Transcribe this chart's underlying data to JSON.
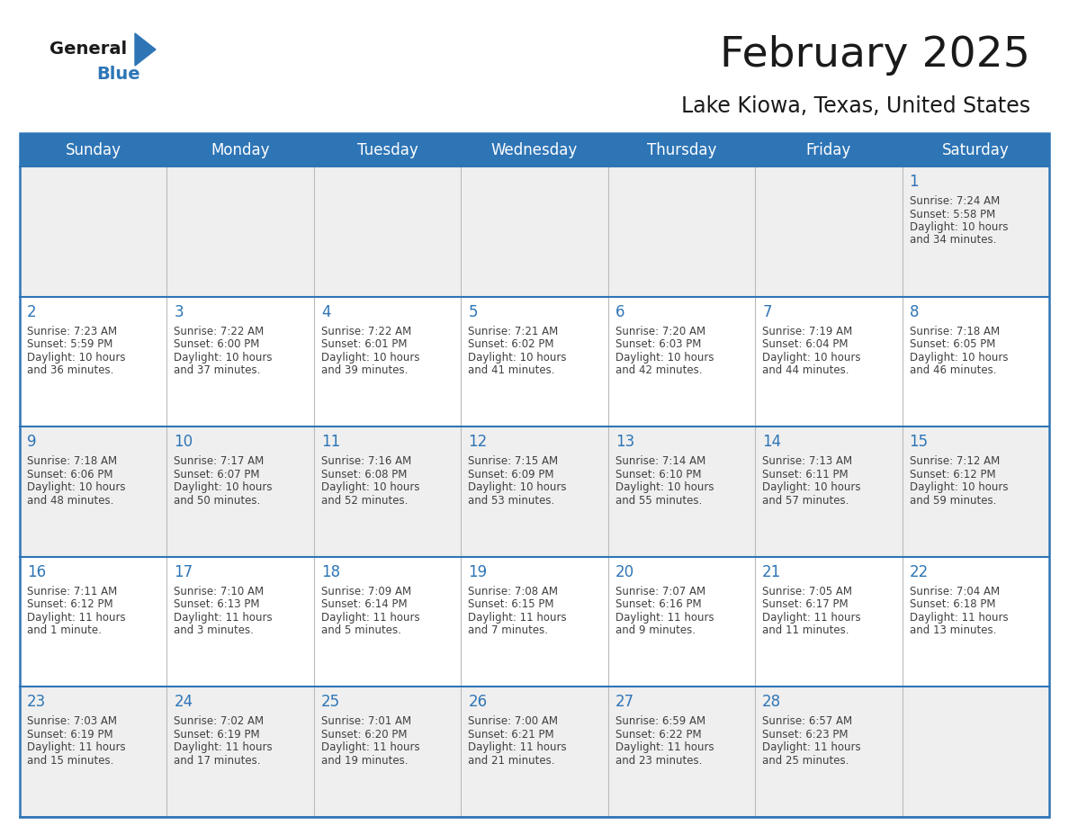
{
  "title": "February 2025",
  "subtitle": "Lake Kiowa, Texas, United States",
  "days_of_week": [
    "Sunday",
    "Monday",
    "Tuesday",
    "Wednesday",
    "Thursday",
    "Friday",
    "Saturday"
  ],
  "header_bg": "#2E75B6",
  "header_text": "#FFFFFF",
  "cell_bg_odd": "#EFEFEF",
  "cell_bg_even": "#FFFFFF",
  "day_number_color": "#2E75B6",
  "text_color": "#404040",
  "line_color": "#2E75B6",
  "title_color": "#1a1a1a",
  "logo_general_color": "#1a1a1a",
  "logo_blue_color": "#2E75B6",
  "logo_triangle_color": "#2E75B6",
  "weeks": [
    [
      null,
      null,
      null,
      null,
      null,
      null,
      1
    ],
    [
      2,
      3,
      4,
      5,
      6,
      7,
      8
    ],
    [
      9,
      10,
      11,
      12,
      13,
      14,
      15
    ],
    [
      16,
      17,
      18,
      19,
      20,
      21,
      22
    ],
    [
      23,
      24,
      25,
      26,
      27,
      28,
      null
    ]
  ],
  "cell_data": {
    "1": {
      "sunrise": "7:24 AM",
      "sunset": "5:58 PM",
      "daylight_h": "10 hours",
      "daylight_m": "34 minutes"
    },
    "2": {
      "sunrise": "7:23 AM",
      "sunset": "5:59 PM",
      "daylight_h": "10 hours",
      "daylight_m": "36 minutes"
    },
    "3": {
      "sunrise": "7:22 AM",
      "sunset": "6:00 PM",
      "daylight_h": "10 hours",
      "daylight_m": "37 minutes"
    },
    "4": {
      "sunrise": "7:22 AM",
      "sunset": "6:01 PM",
      "daylight_h": "10 hours",
      "daylight_m": "39 minutes"
    },
    "5": {
      "sunrise": "7:21 AM",
      "sunset": "6:02 PM",
      "daylight_h": "10 hours",
      "daylight_m": "41 minutes"
    },
    "6": {
      "sunrise": "7:20 AM",
      "sunset": "6:03 PM",
      "daylight_h": "10 hours",
      "daylight_m": "42 minutes"
    },
    "7": {
      "sunrise": "7:19 AM",
      "sunset": "6:04 PM",
      "daylight_h": "10 hours",
      "daylight_m": "44 minutes"
    },
    "8": {
      "sunrise": "7:18 AM",
      "sunset": "6:05 PM",
      "daylight_h": "10 hours",
      "daylight_m": "46 minutes"
    },
    "9": {
      "sunrise": "7:18 AM",
      "sunset": "6:06 PM",
      "daylight_h": "10 hours",
      "daylight_m": "48 minutes"
    },
    "10": {
      "sunrise": "7:17 AM",
      "sunset": "6:07 PM",
      "daylight_h": "10 hours",
      "daylight_m": "50 minutes"
    },
    "11": {
      "sunrise": "7:16 AM",
      "sunset": "6:08 PM",
      "daylight_h": "10 hours",
      "daylight_m": "52 minutes"
    },
    "12": {
      "sunrise": "7:15 AM",
      "sunset": "6:09 PM",
      "daylight_h": "10 hours",
      "daylight_m": "53 minutes"
    },
    "13": {
      "sunrise": "7:14 AM",
      "sunset": "6:10 PM",
      "daylight_h": "10 hours",
      "daylight_m": "55 minutes"
    },
    "14": {
      "sunrise": "7:13 AM",
      "sunset": "6:11 PM",
      "daylight_h": "10 hours",
      "daylight_m": "57 minutes"
    },
    "15": {
      "sunrise": "7:12 AM",
      "sunset": "6:12 PM",
      "daylight_h": "10 hours",
      "daylight_m": "59 minutes"
    },
    "16": {
      "sunrise": "7:11 AM",
      "sunset": "6:12 PM",
      "daylight_h": "11 hours",
      "daylight_m": "1 minute"
    },
    "17": {
      "sunrise": "7:10 AM",
      "sunset": "6:13 PM",
      "daylight_h": "11 hours",
      "daylight_m": "3 minutes"
    },
    "18": {
      "sunrise": "7:09 AM",
      "sunset": "6:14 PM",
      "daylight_h": "11 hours",
      "daylight_m": "5 minutes"
    },
    "19": {
      "sunrise": "7:08 AM",
      "sunset": "6:15 PM",
      "daylight_h": "11 hours",
      "daylight_m": "7 minutes"
    },
    "20": {
      "sunrise": "7:07 AM",
      "sunset": "6:16 PM",
      "daylight_h": "11 hours",
      "daylight_m": "9 minutes"
    },
    "21": {
      "sunrise": "7:05 AM",
      "sunset": "6:17 PM",
      "daylight_h": "11 hours",
      "daylight_m": "11 minutes"
    },
    "22": {
      "sunrise": "7:04 AM",
      "sunset": "6:18 PM",
      "daylight_h": "11 hours",
      "daylight_m": "13 minutes"
    },
    "23": {
      "sunrise": "7:03 AM",
      "sunset": "6:19 PM",
      "daylight_h": "11 hours",
      "daylight_m": "15 minutes"
    },
    "24": {
      "sunrise": "7:02 AM",
      "sunset": "6:19 PM",
      "daylight_h": "11 hours",
      "daylight_m": "17 minutes"
    },
    "25": {
      "sunrise": "7:01 AM",
      "sunset": "6:20 PM",
      "daylight_h": "11 hours",
      "daylight_m": "19 minutes"
    },
    "26": {
      "sunrise": "7:00 AM",
      "sunset": "6:21 PM",
      "daylight_h": "11 hours",
      "daylight_m": "21 minutes"
    },
    "27": {
      "sunrise": "6:59 AM",
      "sunset": "6:22 PM",
      "daylight_h": "11 hours",
      "daylight_m": "23 minutes"
    },
    "28": {
      "sunrise": "6:57 AM",
      "sunset": "6:23 PM",
      "daylight_h": "11 hours",
      "daylight_m": "25 minutes"
    }
  }
}
